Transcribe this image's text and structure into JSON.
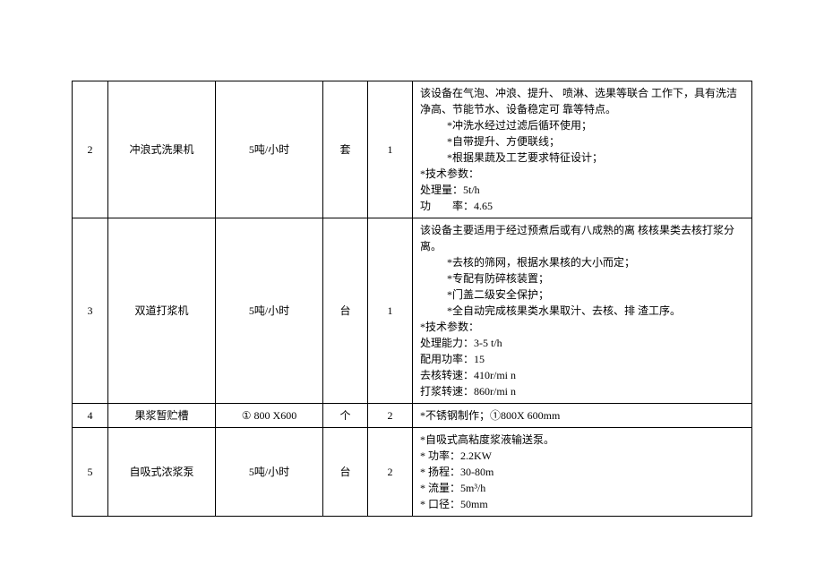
{
  "table": {
    "columns": [
      {
        "key": "num",
        "width": 40,
        "align": "center"
      },
      {
        "key": "name",
        "width": 120,
        "align": "center"
      },
      {
        "key": "spec",
        "width": 120,
        "align": "center"
      },
      {
        "key": "unit",
        "width": 50,
        "align": "center"
      },
      {
        "key": "qty",
        "width": 50,
        "align": "center"
      },
      {
        "key": "desc",
        "align": "left"
      }
    ],
    "rows": [
      {
        "num": "2",
        "name": "冲浪式洗果机",
        "spec": "5吨/小时",
        "unit": "套",
        "qty": "1",
        "desc_lines": [
          {
            "text": "该设备在气泡、冲浪、提升、 喷淋、选果等联合  工作下，具有洗洁净高、节能节水、设备稳定可  靠等特点。"
          },
          {
            "text": "*冲洗水经过过滤后循环使用；",
            "indent": true
          },
          {
            "text": "*自带提升、方便联线；",
            "indent": true
          },
          {
            "text": "*根据果蔬及工艺要求特征设计；",
            "indent": true
          },
          {
            "text": "*技术参数："
          },
          {
            "text": "处理量：5t/h"
          },
          {
            "text": "功　　率：4.65"
          }
        ]
      },
      {
        "num": "3",
        "name": "双道打浆机",
        "spec": "5吨/小时",
        "unit": "台",
        "qty": "1",
        "desc_lines": [
          {
            "text": "该设备主要适用于经过预煮后或有八成熟的离  核核果类去核打浆分离。"
          },
          {
            "text": "*去核的筛网，根据水果核的大小而定；",
            "indent": true
          },
          {
            "text": "*专配有防碎核装置；",
            "indent": true
          },
          {
            "text": "*门盖二级安全保护；",
            "indent": true
          },
          {
            "text": "*全自动完成核果类水果取汁、去核、排  渣工序。",
            "indent": true
          },
          {
            "text": "*技术参数："
          },
          {
            "text": "处理能力：3-5 t/h"
          },
          {
            "text": "配用功率：15"
          },
          {
            "text": "去核转速：410r/mi n"
          },
          {
            "text": "打浆转速：860r/mi n"
          }
        ]
      },
      {
        "num": "4",
        "name": "果浆暂贮槽",
        "spec": "① 800 X600",
        "unit": "个",
        "qty": "2",
        "desc_lines": [
          {
            "text": "*不锈钢制作；①800X 600mm"
          }
        ]
      },
      {
        "num": "5",
        "name": "自吸式浓浆泵",
        "spec": "5吨/小时",
        "unit": "台",
        "qty": "2",
        "desc_lines": [
          {
            "text": "*自吸式高粘度浆液输送泵。"
          },
          {
            "text": "* 功率：2.2KW"
          },
          {
            "text": "* 扬程：30-80m"
          },
          {
            "text": "* 流量：5m³/h"
          },
          {
            "text": "* 口径：50mm"
          }
        ]
      }
    ],
    "border_color": "#000000",
    "background_color": "#ffffff",
    "text_color": "#000000",
    "font_size": 12,
    "line_height": 1.5
  }
}
